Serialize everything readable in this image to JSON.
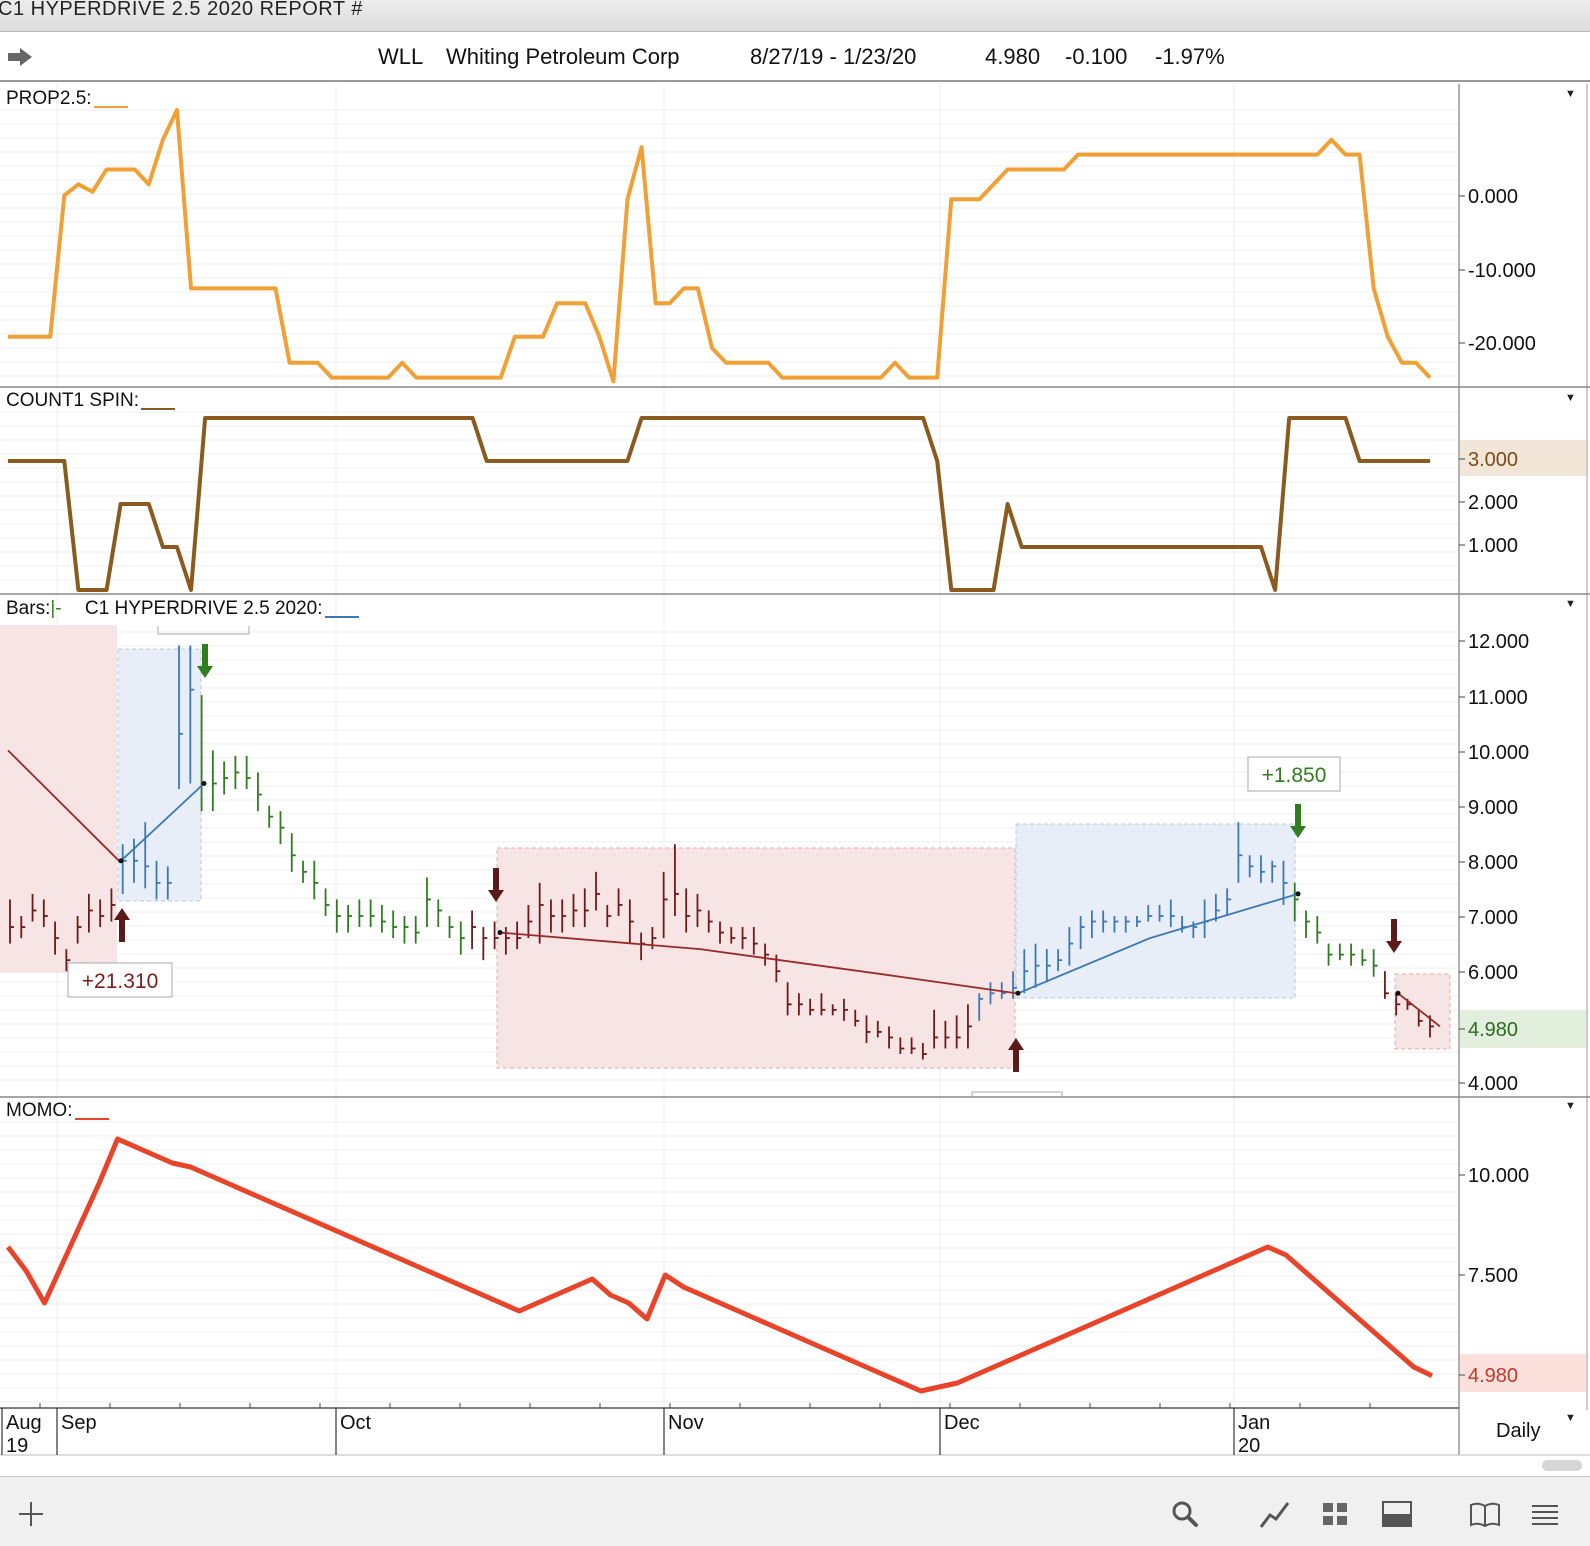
{
  "window": {
    "title": "C1 HYPERDRIVE 2.5 2020 REPORT #"
  },
  "header": {
    "symbol": "WLL",
    "name": "Whiting Petroleum Corp",
    "date_range": "8/27/19 - 1/23/20",
    "last": "4.980",
    "change": "-0.100",
    "change_pct": "-1.97%"
  },
  "panels": {
    "prop": {
      "label": "PROP2.5:",
      "color": "#f0a035"
    },
    "count": {
      "label": "COUNT1 SPIN:",
      "color": "#8b5a1e",
      "current": "3.000"
    },
    "bars": {
      "label": "Bars:",
      "label2": "C1 HYPERDRIVE 2.5 2020:",
      "current": "4.980"
    },
    "momo": {
      "label": "MOMO:",
      "color": "#e8442a",
      "current": "4.980"
    }
  },
  "period": "Daily",
  "colors": {
    "up": "#2f7d1e",
    "down": "#6e1a1a",
    "blue": "#3c78b4",
    "red_zone": "#f7e4e4",
    "blue_zone": "#e8eef7"
  },
  "toolbar_icons": [
    "plus-icon",
    "search-icon",
    "line-chart-icon",
    "grid-icon",
    "layout-icon",
    "book-icon",
    "menu-icon"
  ],
  "chart_data": [
    {
      "type": "line",
      "panel": "PROP2.5",
      "ticks": [
        "0.000",
        "-10.000",
        "-20.000"
      ],
      "ylim": [
        -26,
        11
      ],
      "x": [
        1,
        2,
        3,
        4,
        5,
        6,
        7,
        8,
        9,
        10,
        11,
        12,
        13,
        14,
        15,
        16,
        17,
        18,
        19,
        20,
        21,
        22,
        23,
        24,
        25,
        26,
        27,
        28,
        29,
        30,
        31,
        32,
        33,
        34,
        35,
        36,
        37,
        38,
        39,
        40,
        41,
        42,
        43,
        44,
        45,
        46,
        47,
        48,
        49,
        50,
        51,
        52,
        53,
        54,
        55,
        56,
        57,
        58,
        59,
        60,
        61,
        62,
        63,
        64,
        65,
        66,
        67,
        68,
        69,
        70,
        71,
        72,
        73,
        74,
        75,
        76,
        77,
        78,
        79,
        80,
        81,
        82,
        83,
        84,
        85,
        86,
        87,
        88,
        89,
        90,
        91,
        92,
        93,
        94,
        95,
        96,
        97,
        98,
        99,
        100,
        101,
        102
      ],
      "values": [
        -19.5,
        -19.5,
        -19.5,
        -19.5,
        -0.5,
        1,
        0,
        3,
        3,
        3,
        1,
        7,
        11,
        -13,
        -13,
        -13,
        -13,
        -13,
        -13,
        -13,
        -23,
        -23,
        -23,
        -25,
        -25,
        -25,
        -25,
        -25,
        -23,
        -25,
        -25,
        -25,
        -25,
        -25,
        -25,
        -25,
        -19.5,
        -19.5,
        -19.5,
        -15,
        -15,
        -15,
        -19.5,
        -25.5,
        -1,
        6,
        -15,
        -15,
        -13,
        -13,
        -21,
        -23,
        -23,
        -23,
        -23,
        -25,
        -25,
        -25,
        -25,
        -25,
        -25,
        -25,
        -25,
        -23,
        -25,
        -25,
        -25,
        -1,
        -1,
        -1,
        1,
        3,
        3,
        3,
        3,
        3,
        5,
        5,
        5,
        5,
        5,
        5,
        5,
        5,
        5,
        5,
        5,
        5,
        5,
        5,
        5,
        5,
        5,
        5,
        7,
        5,
        5,
        -13,
        -19.5,
        -23,
        -23,
        -25
      ]
    },
    {
      "type": "line",
      "panel": "COUNT1 SPIN",
      "ticks": [
        "3.000",
        "2.000",
        "1.000"
      ],
      "ylim": [
        0,
        4
      ],
      "x_pixels_note": "rendered along shared date axis",
      "values": [
        3,
        3,
        3,
        3,
        3,
        0,
        0,
        0,
        2,
        2,
        2,
        1,
        1,
        0,
        4,
        4,
        4,
        4,
        4,
        4,
        4,
        4,
        4,
        4,
        4,
        4,
        4,
        4,
        4,
        4,
        4,
        4,
        4,
        4,
        3,
        3,
        3,
        3,
        3,
        3,
        3,
        3,
        3,
        3,
        3,
        4,
        4,
        4,
        4,
        4,
        4,
        4,
        4,
        4,
        4,
        4,
        4,
        4,
        4,
        4,
        4,
        4,
        4,
        4,
        4,
        4,
        3,
        0,
        0,
        0,
        0,
        2,
        1,
        1,
        1,
        1,
        1,
        1,
        1,
        1,
        1,
        1,
        1,
        1,
        1,
        1,
        1,
        1,
        1,
        1,
        0,
        4,
        4,
        4,
        4,
        4,
        3,
        3,
        3,
        3,
        3,
        3
      ]
    },
    {
      "type": "bar",
      "panel": "Bars",
      "ticks": [
        "12.000",
        "11.000",
        "10.000",
        "9.000",
        "8.000",
        "7.000",
        "6.000",
        "4.980",
        "4.000"
      ],
      "ylim": [
        3.8,
        12.3
      ],
      "labels": [
        "+21.310",
        "+1.850"
      ],
      "series_colors": [
        "down",
        "blue",
        "up"
      ],
      "ohlc": [
        [
          6.5,
          7.3,
          6.8,
          "d"
        ],
        [
          6.6,
          7.0,
          6.8,
          "d"
        ],
        [
          6.9,
          7.4,
          7.1,
          "d"
        ],
        [
          6.8,
          7.3,
          7.0,
          "d"
        ],
        [
          6.3,
          6.9,
          6.6,
          "d"
        ],
        [
          6.0,
          6.4,
          6.2,
          "d"
        ],
        [
          6.5,
          7.0,
          6.8,
          "d"
        ],
        [
          6.7,
          7.4,
          7.1,
          "d"
        ],
        [
          6.8,
          7.3,
          7.0,
          "d"
        ],
        [
          6.9,
          7.5,
          7.2,
          "d"
        ],
        [
          7.4,
          8.3,
          8.0,
          "b"
        ],
        [
          7.6,
          8.4,
          8.0,
          "b"
        ],
        [
          7.5,
          8.7,
          7.9,
          "b"
        ],
        [
          7.3,
          8.0,
          7.6,
          "b"
        ],
        [
          7.3,
          7.9,
          7.6,
          "b"
        ],
        [
          9.3,
          11.9,
          10.3,
          "b"
        ],
        [
          9.4,
          11.9,
          11.1,
          "b"
        ],
        [
          8.9,
          11.0,
          9.4,
          "u"
        ],
        [
          8.9,
          10.0,
          9.4,
          "u"
        ],
        [
          9.2,
          9.8,
          9.5,
          "u"
        ],
        [
          9.3,
          9.9,
          9.6,
          "u"
        ],
        [
          9.3,
          9.9,
          9.5,
          "u"
        ],
        [
          8.9,
          9.6,
          9.2,
          "u"
        ],
        [
          8.6,
          9.0,
          8.8,
          "u"
        ],
        [
          8.3,
          8.9,
          8.6,
          "u"
        ],
        [
          7.8,
          8.5,
          8.1,
          "u"
        ],
        [
          7.6,
          8.0,
          7.8,
          "u"
        ],
        [
          7.3,
          8.0,
          7.6,
          "u"
        ],
        [
          7.0,
          7.5,
          7.2,
          "u"
        ],
        [
          6.7,
          7.3,
          7.0,
          "u"
        ],
        [
          6.7,
          7.2,
          7.0,
          "u"
        ],
        [
          6.8,
          7.3,
          7.0,
          "u"
        ],
        [
          6.8,
          7.3,
          7.0,
          "u"
        ],
        [
          6.7,
          7.2,
          6.9,
          "u"
        ],
        [
          6.6,
          7.1,
          6.8,
          "u"
        ],
        [
          6.5,
          7.0,
          6.8,
          "u"
        ],
        [
          6.5,
          7.0,
          6.7,
          "u"
        ],
        [
          6.8,
          7.7,
          7.3,
          "u"
        ],
        [
          6.8,
          7.3,
          7.1,
          "u"
        ],
        [
          6.6,
          7.0,
          6.8,
          "u"
        ],
        [
          6.3,
          6.9,
          6.6,
          "u"
        ],
        [
          6.4,
          7.1,
          6.8,
          "d"
        ],
        [
          6.2,
          6.8,
          6.6,
          "d"
        ],
        [
          6.4,
          6.9,
          6.6,
          "d"
        ],
        [
          6.3,
          6.8,
          6.6,
          "d"
        ],
        [
          6.4,
          6.9,
          6.6,
          "d"
        ],
        [
          6.6,
          7.2,
          6.9,
          "d"
        ],
        [
          6.5,
          7.6,
          7.2,
          "d"
        ],
        [
          6.7,
          7.3,
          7.0,
          "d"
        ],
        [
          6.7,
          7.3,
          7.0,
          "d"
        ],
        [
          6.8,
          7.4,
          7.1,
          "d"
        ],
        [
          6.8,
          7.5,
          7.1,
          "d"
        ],
        [
          7.1,
          7.8,
          7.4,
          "d"
        ],
        [
          6.8,
          7.2,
          7.0,
          "d"
        ],
        [
          7.0,
          7.5,
          7.2,
          "d"
        ],
        [
          6.5,
          7.3,
          6.9,
          "d"
        ],
        [
          6.2,
          6.7,
          6.5,
          "d"
        ],
        [
          6.4,
          6.8,
          6.6,
          "d"
        ],
        [
          6.6,
          7.8,
          7.3,
          "d"
        ],
        [
          7.0,
          8.3,
          7.4,
          "d"
        ],
        [
          6.7,
          7.5,
          7.0,
          "d"
        ],
        [
          6.8,
          7.4,
          7.1,
          "d"
        ],
        [
          6.7,
          7.1,
          6.9,
          "d"
        ],
        [
          6.5,
          6.9,
          6.7,
          "d"
        ],
        [
          6.5,
          6.8,
          6.6,
          "d"
        ],
        [
          6.4,
          6.8,
          6.6,
          "d"
        ],
        [
          6.3,
          6.8,
          6.5,
          "d"
        ],
        [
          6.1,
          6.5,
          6.3,
          "d"
        ],
        [
          5.8,
          6.3,
          6.0,
          "d"
        ],
        [
          5.2,
          5.8,
          5.4,
          "d"
        ],
        [
          5.2,
          5.6,
          5.4,
          "d"
        ],
        [
          5.2,
          5.5,
          5.3,
          "d"
        ],
        [
          5.2,
          5.6,
          5.3,
          "d"
        ],
        [
          5.2,
          5.4,
          5.3,
          "d"
        ],
        [
          5.1,
          5.5,
          5.3,
          "d"
        ],
        [
          5.0,
          5.3,
          5.1,
          "d"
        ],
        [
          4.7,
          5.2,
          4.9,
          "d"
        ],
        [
          4.8,
          5.1,
          4.9,
          "d"
        ],
        [
          4.6,
          5.0,
          4.8,
          "d"
        ],
        [
          4.5,
          4.8,
          4.6,
          "d"
        ],
        [
          4.5,
          4.8,
          4.6,
          "d"
        ],
        [
          4.4,
          4.7,
          4.5,
          "d"
        ],
        [
          4.6,
          5.3,
          4.8,
          "d"
        ],
        [
          4.6,
          5.1,
          4.8,
          "d"
        ],
        [
          4.6,
          5.2,
          4.8,
          "d"
        ],
        [
          4.6,
          5.4,
          5.0,
          "d"
        ],
        [
          5.1,
          5.6,
          5.5,
          "b"
        ],
        [
          5.4,
          5.8,
          5.6,
          "b"
        ],
        [
          5.5,
          5.8,
          5.6,
          "b"
        ],
        [
          5.5,
          6.0,
          5.7,
          "b"
        ],
        [
          5.6,
          6.4,
          6.0,
          "b"
        ],
        [
          5.7,
          6.5,
          6.1,
          "b"
        ],
        [
          5.8,
          6.4,
          6.1,
          "b"
        ],
        [
          6.0,
          6.4,
          6.2,
          "b"
        ],
        [
          6.1,
          6.8,
          6.5,
          "b"
        ],
        [
          6.4,
          7.0,
          6.8,
          "b"
        ],
        [
          6.6,
          7.1,
          6.9,
          "b"
        ],
        [
          6.7,
          7.1,
          6.9,
          "b"
        ],
        [
          6.7,
          7.0,
          6.9,
          "b"
        ],
        [
          6.7,
          7.0,
          6.9,
          "b"
        ],
        [
          6.8,
          7.0,
          6.9,
          "b"
        ],
        [
          6.9,
          7.2,
          7.0,
          "b"
        ],
        [
          6.9,
          7.2,
          7.0,
          "b"
        ],
        [
          6.8,
          7.3,
          7.0,
          "b"
        ],
        [
          6.7,
          7.0,
          6.8,
          "b"
        ],
        [
          6.6,
          6.9,
          6.8,
          "b"
        ],
        [
          6.6,
          7.3,
          6.9,
          "b"
        ],
        [
          6.9,
          7.4,
          7.1,
          "b"
        ],
        [
          7.0,
          7.5,
          7.3,
          "b"
        ],
        [
          7.6,
          8.7,
          8.1,
          "b"
        ],
        [
          7.7,
          8.1,
          7.9,
          "b"
        ],
        [
          7.6,
          8.1,
          7.8,
          "b"
        ],
        [
          7.6,
          8.0,
          7.9,
          "b"
        ],
        [
          7.2,
          8.0,
          7.6,
          "b"
        ],
        [
          6.9,
          7.6,
          7.3,
          "u"
        ],
        [
          6.6,
          7.1,
          6.9,
          "u"
        ],
        [
          6.5,
          7.0,
          6.7,
          "u"
        ],
        [
          6.1,
          6.5,
          6.3,
          "u"
        ],
        [
          6.2,
          6.5,
          6.3,
          "u"
        ],
        [
          6.1,
          6.5,
          6.3,
          "u"
        ],
        [
          6.1,
          6.4,
          6.2,
          "u"
        ],
        [
          5.9,
          6.4,
          6.1,
          "u"
        ],
        [
          5.5,
          6.0,
          5.6,
          "d"
        ],
        [
          5.2,
          5.6,
          5.4,
          "d"
        ],
        [
          5.3,
          5.5,
          5.4,
          "d"
        ],
        [
          5.0,
          5.3,
          5.1,
          "d"
        ],
        [
          4.8,
          5.2,
          5.0,
          "d"
        ]
      ]
    },
    {
      "type": "line",
      "panel": "MOMO",
      "ticks": [
        "10.000",
        "7.500",
        "4.980"
      ],
      "ylim": [
        4.3,
        11.5
      ],
      "values": [
        8.2,
        7.6,
        6.8,
        7.8,
        8.8,
        9.8,
        10.9,
        10.7,
        10.5,
        10.3,
        10.2,
        10.0,
        9.8,
        9.6,
        9.4,
        9.2,
        9.0,
        8.8,
        8.6,
        8.4,
        8.2,
        8.0,
        7.8,
        7.6,
        7.4,
        7.2,
        7.0,
        6.8,
        6.6,
        6.8,
        7.0,
        7.2,
        7.4,
        7.0,
        6.8,
        6.4,
        7.5,
        7.2,
        7.0,
        6.8,
        6.6,
        6.4,
        6.2,
        6.0,
        5.8,
        5.6,
        5.4,
        5.2,
        5.0,
        4.8,
        4.6,
        4.7,
        4.8,
        5.0,
        5.2,
        5.4,
        5.6,
        5.8,
        6.0,
        6.2,
        6.4,
        6.6,
        6.8,
        7.0,
        7.2,
        7.4,
        7.6,
        7.8,
        8.0,
        8.2,
        8.0,
        7.6,
        7.2,
        6.8,
        6.4,
        6.0,
        5.6,
        5.2,
        4.98
      ]
    }
  ],
  "axis": {
    "months": [
      {
        "top": "Aug",
        "bottom": "19"
      },
      {
        "top": "Sep",
        "bottom": ""
      },
      {
        "top": "Oct",
        "bottom": ""
      },
      {
        "top": "Nov",
        "bottom": ""
      },
      {
        "top": "Dec",
        "bottom": ""
      },
      {
        "top": "Jan",
        "bottom": "20"
      }
    ]
  }
}
